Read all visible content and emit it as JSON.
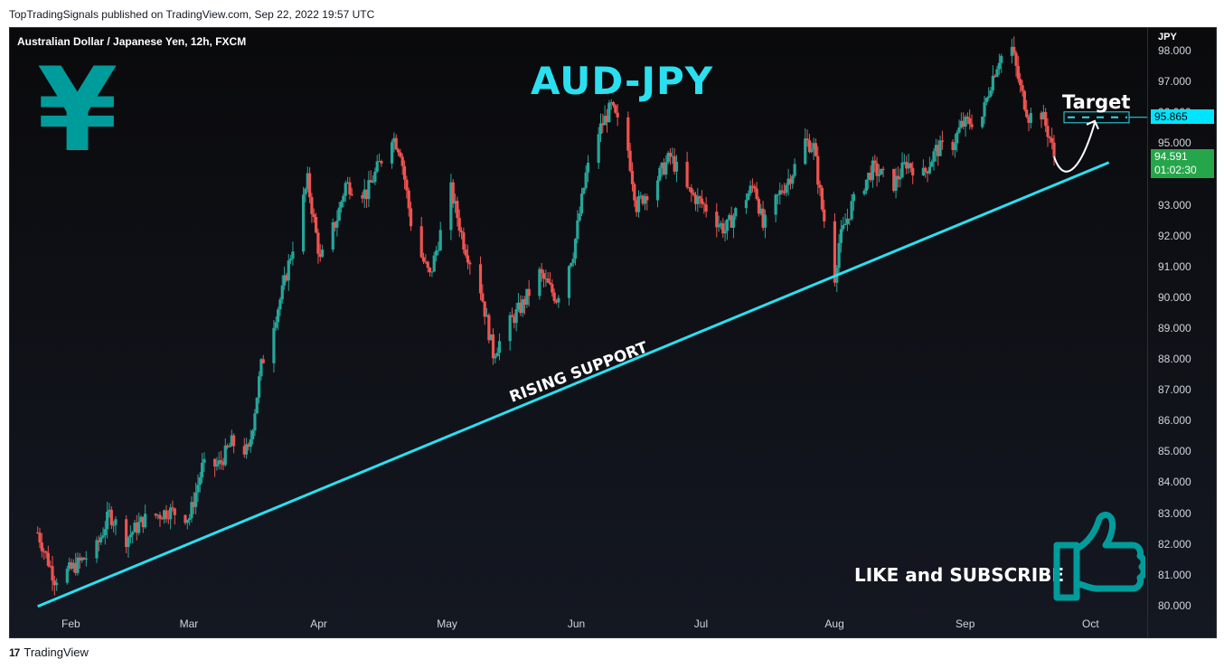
{
  "header": {
    "caption": "TopTradingSignals published on TradingView.com, Sep 22, 2022 19:57 UTC"
  },
  "footer": {
    "brand": "TradingView",
    "logo_glyph": "17"
  },
  "chart": {
    "symbol_title": "Australian Dollar / Japanese Yen, 12h, FXCM",
    "big_title": "AUD-JPY",
    "currency_glyph": "¥",
    "axis_currency": "JPY",
    "target_label": "Target",
    "support_label": "RISING SUPPORT",
    "cta_label": "LIKE and SUBSCRIBE",
    "target_price": "95.865",
    "last_price": "94.591",
    "countdown": "01:02:30",
    "icons": [
      "yen-symbol",
      "thumbs-up-icon"
    ],
    "colors": {
      "up": "#26a69a",
      "down": "#ef5350",
      "accent": "#2ae0f0",
      "icon": "#009c9c"
    }
  },
  "chart_data": {
    "type": "candlestick",
    "title": "AUD-JPY",
    "timeframe": "12h",
    "y_ticks": [
      "98.000",
      "97.000",
      "96.000",
      "95.000",
      "94.000",
      "93.000",
      "92.000",
      "91.000",
      "90.000",
      "89.000",
      "88.000",
      "87.000",
      "86.000",
      "85.000",
      "84.000",
      "83.000",
      "82.000",
      "81.000",
      "80.000"
    ],
    "x_ticks": [
      "Feb",
      "Mar",
      "Apr",
      "May",
      "Jun",
      "Jul",
      "Aug",
      "Sep",
      "Oct"
    ],
    "ylim": [
      79.7,
      98.4
    ],
    "approx_closes": [
      [
        "2022-01-24",
        82.4
      ],
      [
        "2022-01-28",
        80.9
      ],
      [
        "2022-02-01",
        81.2
      ],
      [
        "2022-02-07",
        81.9
      ],
      [
        "2022-02-10",
        83.0
      ],
      [
        "2022-02-14",
        82.2
      ],
      [
        "2022-02-18",
        82.8
      ],
      [
        "2022-02-24",
        83.1
      ],
      [
        "2022-03-01",
        82.9
      ],
      [
        "2022-03-04",
        84.5
      ],
      [
        "2022-03-08",
        84.6
      ],
      [
        "2022-03-11",
        85.3
      ],
      [
        "2022-03-15",
        85.0
      ],
      [
        "2022-03-18",
        87.8
      ],
      [
        "2022-03-23",
        90.2
      ],
      [
        "2022-03-25",
        91.4
      ],
      [
        "2022-03-29",
        93.8
      ],
      [
        "2022-04-01",
        91.2
      ],
      [
        "2022-04-05",
        92.6
      ],
      [
        "2022-04-07",
        93.7
      ],
      [
        "2022-04-12",
        93.4
      ],
      [
        "2022-04-18",
        95.3
      ],
      [
        "2022-04-20",
        94.8
      ],
      [
        "2022-04-23",
        92.0
      ],
      [
        "2022-04-27",
        90.7
      ],
      [
        "2022-05-02",
        93.5
      ],
      [
        "2022-05-05",
        91.8
      ],
      [
        "2022-05-09",
        90.3
      ],
      [
        "2022-05-12",
        88.2
      ],
      [
        "2022-05-16",
        89.2
      ],
      [
        "2022-05-19",
        89.8
      ],
      [
        "2022-05-23",
        90.8
      ],
      [
        "2022-05-27",
        90.0
      ],
      [
        "2022-05-31",
        91.5
      ],
      [
        "2022-06-03",
        94.0
      ],
      [
        "2022-06-06",
        95.4
      ],
      [
        "2022-06-09",
        96.2
      ],
      [
        "2022-06-13",
        94.8
      ],
      [
        "2022-06-15",
        93.0
      ],
      [
        "2022-06-20",
        93.9
      ],
      [
        "2022-06-23",
        94.6
      ],
      [
        "2022-06-27",
        93.5
      ],
      [
        "2022-07-01",
        93.0
      ],
      [
        "2022-07-06",
        92.2
      ],
      [
        "2022-07-09",
        92.9
      ],
      [
        "2022-07-13",
        93.7
      ],
      [
        "2022-07-15",
        92.3
      ],
      [
        "2022-07-19",
        93.4
      ],
      [
        "2022-07-22",
        94.1
      ],
      [
        "2022-07-25",
        95.1
      ],
      [
        "2022-07-27",
        94.9
      ],
      [
        "2022-07-29",
        92.9
      ],
      [
        "2022-08-01",
        90.7
      ],
      [
        "2022-08-02",
        91.8
      ],
      [
        "2022-08-05",
        93.0
      ],
      [
        "2022-08-10",
        94.2
      ],
      [
        "2022-08-15",
        93.7
      ],
      [
        "2022-08-18",
        94.4
      ],
      [
        "2022-08-22",
        94.0
      ],
      [
        "2022-08-25",
        94.8
      ],
      [
        "2022-08-29",
        95.0
      ],
      [
        "2022-08-31",
        95.6
      ],
      [
        "2022-09-05",
        95.9
      ],
      [
        "2022-09-07",
        97.0
      ],
      [
        "2022-09-09",
        97.8
      ],
      [
        "2022-09-12",
        98.1
      ],
      [
        "2022-09-14",
        96.8
      ],
      [
        "2022-09-16",
        95.9
      ],
      [
        "2022-09-19",
        96.0
      ],
      [
        "2022-09-21",
        95.2
      ],
      [
        "2022-09-22",
        94.59
      ]
    ],
    "annotations": [
      {
        "type": "trendline",
        "label": "RISING SUPPORT",
        "from": [
          "2022-01-24",
          80.0
        ],
        "to": [
          "2022-10-05",
          94.4
        ]
      },
      {
        "type": "target",
        "label": "Target",
        "value": 95.865
      },
      {
        "type": "last_price",
        "value": 94.591
      }
    ]
  }
}
